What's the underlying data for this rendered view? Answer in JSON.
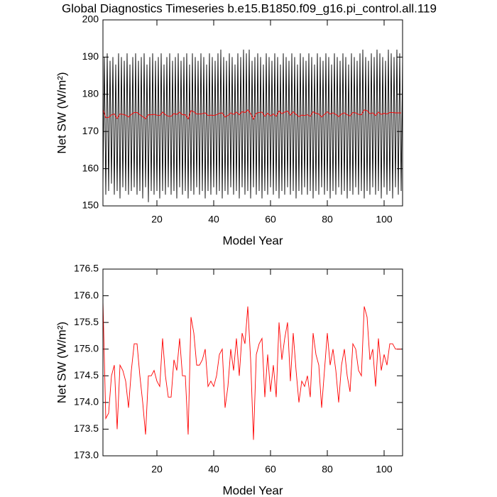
{
  "chart_data": [
    {
      "type": "line",
      "title": "Global Diagnostics Timeseries b.e15.B1850.f09_g16.pi_control.all.119",
      "xlabel": "Model Year",
      "ylabel": "Net SW (W/m²)",
      "xlim": [
        1,
        106.5
      ],
      "ylim": [
        150,
        200
      ],
      "xticks": [
        20,
        40,
        60,
        80,
        100
      ],
      "yticks": [
        150,
        160,
        170,
        180,
        190,
        200
      ],
      "series": [
        {
          "color": "#000000",
          "x": [
            1,
            1.5,
            2,
            2.5,
            3,
            3.5,
            4,
            4.5,
            5,
            5.5,
            6,
            6.5,
            7,
            7.5,
            8,
            8.5,
            9,
            9.5,
            10,
            10.5,
            11,
            11.5,
            12,
            12.5,
            13,
            13.5,
            14,
            14.5,
            15,
            15.5,
            16,
            16.5,
            17,
            17.5,
            18,
            18.5,
            19,
            19.5,
            20,
            20.5,
            21,
            21.5,
            22,
            22.5,
            23,
            23.5,
            24,
            24.5,
            25,
            25.5,
            26,
            26.5,
            27,
            27.5,
            28,
            28.5,
            29,
            29.5,
            30,
            30.5,
            31,
            31.5,
            32,
            32.5,
            33,
            33.5,
            34,
            34.5,
            35,
            35.5,
            36,
            36.5,
            37,
            37.5,
            38,
            38.5,
            39,
            39.5,
            40,
            40.5,
            41,
            41.5,
            42,
            42.5,
            43,
            43.5,
            44,
            44.5,
            45,
            45.5,
            46,
            46.5,
            47,
            47.5,
            48,
            48.5,
            49,
            49.5,
            50,
            50.5,
            51,
            51.5,
            52,
            52.5,
            53,
            53.5,
            54,
            54.5,
            55,
            55.5,
            56,
            56.5,
            57,
            57.5,
            58,
            58.5,
            59,
            59.5,
            60,
            60.5,
            61,
            61.5,
            62,
            62.5,
            63,
            63.5,
            64,
            64.5,
            65,
            65.5,
            66,
            66.5,
            67,
            67.5,
            68,
            68.5,
            69,
            69.5,
            70,
            70.5,
            71,
            71.5,
            72,
            72.5,
            73,
            73.5,
            74,
            74.5,
            75,
            75.5,
            76,
            76.5,
            77,
            77.5,
            78,
            78.5,
            79,
            79.5,
            80,
            80.5,
            81,
            81.5,
            82,
            82.5,
            83,
            83.5,
            84,
            84.5,
            85,
            85.5,
            86,
            86.5,
            87,
            87.5,
            88,
            88.5,
            89,
            89.5,
            90,
            90.5,
            91,
            91.5,
            92,
            92.5,
            93,
            93.5,
            94,
            94.5,
            95,
            95.5,
            96,
            96.5,
            97,
            97.5,
            98,
            98.5,
            99,
            99.5,
            100,
            100.5,
            101,
            101.5,
            102,
            102.5,
            103,
            103.5,
            104,
            104.5,
            105,
            105.5,
            106,
            106.5
          ],
          "values": [
            155,
            190,
            153,
            191,
            154,
            189,
            156,
            190,
            153,
            188,
            154,
            191,
            152,
            190,
            155,
            189,
            154,
            191,
            153,
            188,
            154,
            190,
            155,
            191,
            153,
            189,
            154,
            190,
            152,
            191,
            155,
            188,
            151,
            190,
            154,
            191,
            153,
            189,
            154,
            190,
            152,
            191,
            154,
            188,
            153,
            190,
            155,
            191,
            153,
            189,
            154,
            190,
            152,
            191,
            155,
            189,
            153,
            190,
            154,
            191,
            152,
            188,
            154,
            191,
            153,
            190,
            155,
            189,
            153,
            191,
            154,
            190,
            152,
            188,
            154,
            191,
            153,
            190,
            155,
            189,
            153,
            191,
            154,
            192,
            152,
            190,
            154,
            189,
            153,
            191,
            155,
            190,
            153,
            188,
            154,
            191,
            152,
            190,
            155,
            192,
            153,
            191,
            154,
            192,
            152,
            189,
            155,
            190,
            153,
            191,
            154,
            190,
            152,
            188,
            154,
            191,
            153,
            190,
            155,
            189,
            153,
            191,
            154,
            190,
            152,
            188,
            154,
            191,
            153,
            190,
            155,
            189,
            153,
            191,
            154,
            190,
            152,
            188,
            154,
            191,
            153,
            190,
            155,
            189,
            153,
            191,
            154,
            190,
            152,
            188,
            154,
            191,
            153,
            190,
            155,
            189,
            153,
            191,
            154,
            190,
            152,
            188,
            154,
            191,
            153,
            190,
            155,
            189,
            153,
            191,
            154,
            190,
            152,
            188,
            154,
            191,
            153,
            190,
            155,
            189,
            153,
            191,
            154,
            192,
            152,
            190,
            154,
            189,
            153,
            191,
            155,
            190,
            153,
            192,
            154,
            191,
            152,
            190,
            155,
            189,
            153,
            192,
            154,
            191,
            152,
            190,
            155,
            192,
            153,
            191,
            154,
            190
          ]
        },
        {
          "color": "#ff0000",
          "x": [
            1,
            2,
            3,
            4,
            5,
            6,
            7,
            8,
            9,
            10,
            11,
            12,
            13,
            14,
            15,
            16,
            17,
            18,
            19,
            20,
            21,
            22,
            23,
            24,
            25,
            26,
            27,
            28,
            29,
            30,
            31,
            32,
            33,
            34,
            35,
            36,
            37,
            38,
            39,
            40,
            41,
            42,
            43,
            44,
            45,
            46,
            47,
            48,
            49,
            50,
            51,
            52,
            53,
            54,
            55,
            56,
            57,
            58,
            59,
            60,
            61,
            62,
            63,
            64,
            65,
            66,
            67,
            68,
            69,
            70,
            71,
            72,
            73,
            74,
            75,
            76,
            77,
            78,
            79,
            80,
            81,
            82,
            83,
            84,
            85,
            86,
            87,
            88,
            89,
            90,
            91,
            92,
            93,
            94,
            95,
            96,
            97,
            98,
            99,
            100,
            101,
            102,
            103,
            104,
            105,
            106
          ],
          "values": [
            175.9,
            173.7,
            173.8,
            174.5,
            174.7,
            173.5,
            174.7,
            174.6,
            174.4,
            173.9,
            174.6,
            175.1,
            175.1,
            174.5,
            174.0,
            173.4,
            174.5,
            174.5,
            174.6,
            174.4,
            174.3,
            175.2,
            174.5,
            174.1,
            174.1,
            174.8,
            174.6,
            175.2,
            174.5,
            174.5,
            173.4,
            175.6,
            175.3,
            174.7,
            174.7,
            174.8,
            175.0,
            174.3,
            174.4,
            174.3,
            174.5,
            174.9,
            175.0,
            173.9,
            174.3,
            175.0,
            174.6,
            175.2,
            174.5,
            175.3,
            175.1,
            175.8,
            174.8,
            173.3,
            174.9,
            175.1,
            175.2,
            174.1,
            174.9,
            174.2,
            174.7,
            174.1,
            175.5,
            174.8,
            175.2,
            175.5,
            174.4,
            175.3,
            174.6,
            174.0,
            174.4,
            174.3,
            174.5,
            174.1,
            175.3,
            174.9,
            174.7,
            173.9,
            174.6,
            175.3,
            174.7,
            175.0,
            174.6,
            174.0,
            174.7,
            175.0,
            174.5,
            174.2,
            175.1,
            175.0,
            174.6,
            174.5,
            175.8,
            175.6,
            174.8,
            175.0,
            174.3,
            175.2,
            174.6,
            174.9,
            174.7,
            175.1,
            175.1,
            175.0,
            175.0,
            175.0
          ]
        }
      ]
    },
    {
      "type": "line",
      "xlabel": "Model Year",
      "ylabel": "Net SW (W/m²)",
      "xlim": [
        1,
        106.5
      ],
      "ylim": [
        173,
        176.5
      ],
      "xticks": [
        20,
        40,
        60,
        80,
        100
      ],
      "yticks": [
        {
          "value": 173,
          "label": "173.0"
        },
        173.5,
        {
          "value": 174,
          "label": "174.0"
        },
        174.5,
        {
          "value": 175,
          "label": "175.0"
        },
        175.5,
        {
          "value": 176,
          "label": "176.0"
        },
        176.5
      ],
      "series": [
        {
          "color": "#ff0000",
          "x": [
            1,
            2,
            3,
            4,
            5,
            6,
            7,
            8,
            9,
            10,
            11,
            12,
            13,
            14,
            15,
            16,
            17,
            18,
            19,
            20,
            21,
            22,
            23,
            24,
            25,
            26,
            27,
            28,
            29,
            30,
            31,
            32,
            33,
            34,
            35,
            36,
            37,
            38,
            39,
            40,
            41,
            42,
            43,
            44,
            45,
            46,
            47,
            48,
            49,
            50,
            51,
            52,
            53,
            54,
            55,
            56,
            57,
            58,
            59,
            60,
            61,
            62,
            63,
            64,
            65,
            66,
            67,
            68,
            69,
            70,
            71,
            72,
            73,
            74,
            75,
            76,
            77,
            78,
            79,
            80,
            81,
            82,
            83,
            84,
            85,
            86,
            87,
            88,
            89,
            90,
            91,
            92,
            93,
            94,
            95,
            96,
            97,
            98,
            99,
            100,
            101,
            102,
            103,
            104,
            105,
            106
          ],
          "values": [
            175.9,
            173.7,
            173.8,
            174.5,
            174.7,
            173.5,
            174.7,
            174.6,
            174.4,
            173.9,
            174.6,
            175.1,
            175.1,
            174.5,
            174.0,
            173.4,
            174.5,
            174.5,
            174.6,
            174.4,
            174.3,
            175.2,
            174.5,
            174.1,
            174.1,
            174.8,
            174.6,
            175.2,
            174.5,
            174.5,
            173.4,
            175.6,
            175.3,
            174.7,
            174.7,
            174.8,
            175.0,
            174.3,
            174.4,
            174.3,
            174.5,
            174.9,
            175.0,
            173.9,
            174.3,
            175.0,
            174.6,
            175.2,
            174.5,
            175.3,
            175.1,
            175.8,
            174.8,
            173.3,
            174.9,
            175.1,
            175.2,
            174.1,
            174.9,
            174.2,
            174.7,
            174.1,
            175.5,
            174.8,
            175.2,
            175.5,
            174.4,
            175.3,
            174.6,
            174.0,
            174.4,
            174.3,
            174.5,
            174.1,
            175.3,
            174.9,
            174.7,
            173.9,
            174.6,
            175.3,
            174.7,
            175.0,
            174.6,
            174.0,
            174.7,
            175.0,
            174.5,
            174.2,
            175.1,
            175.0,
            174.6,
            174.5,
            175.8,
            175.6,
            174.8,
            175.0,
            174.3,
            175.2,
            174.6,
            174.9,
            174.7,
            175.1,
            175.1,
            175.0,
            175.0,
            175.0
          ]
        }
      ]
    }
  ]
}
